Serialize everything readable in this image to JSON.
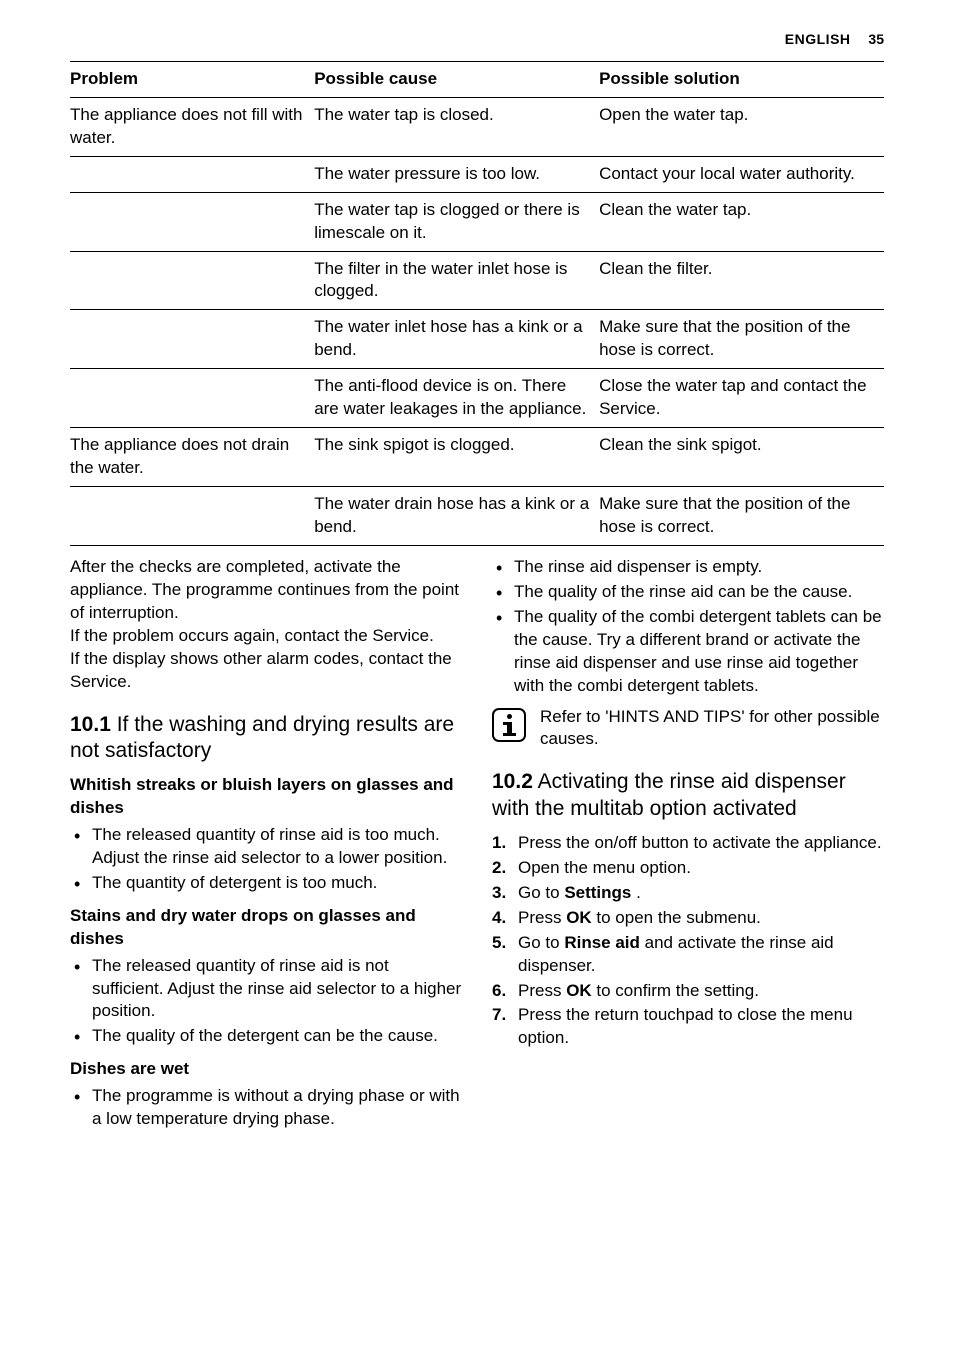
{
  "header": {
    "language": "ENGLISH",
    "page_number": "35"
  },
  "troubleshoot_table": {
    "columns": [
      "Problem",
      "Possible cause",
      "Possible solution"
    ],
    "rows": [
      {
        "problem": "The appliance does not fill with water.",
        "cause": "The water tap is closed.",
        "solution": "Open the water tap."
      },
      {
        "problem": "",
        "cause": "The water pressure is too low.",
        "solution": "Contact your local water authority."
      },
      {
        "problem": "",
        "cause": "The water tap is clogged or there is limescale on it.",
        "solution": "Clean the water tap."
      },
      {
        "problem": "",
        "cause": "The filter in the water inlet hose is clogged.",
        "solution": "Clean the filter."
      },
      {
        "problem": "",
        "cause": "The water inlet hose has a kink or a bend.",
        "solution": "Make sure that the position of the hose is correct."
      },
      {
        "problem": "",
        "cause": "The anti-flood device is on. There are water leakages in the appliance.",
        "solution": "Close the water tap and contact the Service."
      },
      {
        "problem": "The appliance does not drain the water.",
        "cause": "The sink spigot is clogged.",
        "solution": "Clean the sink spigot."
      },
      {
        "problem": "",
        "cause": "The water drain hose has a kink or a bend.",
        "solution": "Make sure that the position of the hose is correct."
      }
    ]
  },
  "left_column": {
    "intro_paragraphs": [
      "After the checks are completed, activate the appliance. The programme continues from the point of interruption.",
      "If the problem occurs again, contact the Service.",
      "If the display shows other alarm codes, contact the Service."
    ],
    "section_10_1": {
      "number": "10.1",
      "title": "If the washing and drying results are not satisfactory"
    },
    "sub_whitish": {
      "heading": "Whitish streaks or bluish layers on glasses and dishes",
      "items": [
        "The released quantity of rinse aid is too much. Adjust the rinse aid selector to a lower position.",
        "The quantity of detergent is too much."
      ]
    },
    "sub_stains": {
      "heading": "Stains and dry water drops on glasses and dishes",
      "items": [
        "The released quantity of rinse aid is not sufficient. Adjust the rinse aid selector to a higher position.",
        "The quality of the detergent can be the cause."
      ]
    },
    "sub_wet": {
      "heading": "Dishes are wet",
      "items": [
        "The programme is without a drying phase or with a low temperature drying phase."
      ]
    }
  },
  "right_column": {
    "continued_items": [
      "The rinse aid dispenser is empty.",
      "The quality of the rinse aid can be the cause.",
      "The quality of the combi detergent tablets can be the cause. Try a different brand or activate the rinse aid dispenser and use rinse aid together with the combi detergent tablets."
    ],
    "info_note": "Refer to 'HINTS AND TIPS' for other possible causes.",
    "section_10_2": {
      "number": "10.2",
      "title": "Activating the rinse aid dispenser with the multitab option activated"
    },
    "steps": [
      {
        "pre": "Press the on/off button to activate the appliance.",
        "bold": "",
        "post": ""
      },
      {
        "pre": "Open the menu option.",
        "bold": "",
        "post": ""
      },
      {
        "pre": "Go to ",
        "bold": "Settings",
        "post": " ."
      },
      {
        "pre": "Press ",
        "bold": "OK",
        "post": " to open the submenu."
      },
      {
        "pre": "Go to ",
        "bold": "Rinse aid",
        "post": " and activate the rinse aid dispenser."
      },
      {
        "pre": "Press ",
        "bold": "OK",
        "post": " to confirm the setting."
      },
      {
        "pre": "Press the return touchpad to close the menu option.",
        "bold": "",
        "post": ""
      }
    ]
  },
  "colors": {
    "text": "#000000",
    "background": "#ffffff",
    "border": "#000000"
  }
}
